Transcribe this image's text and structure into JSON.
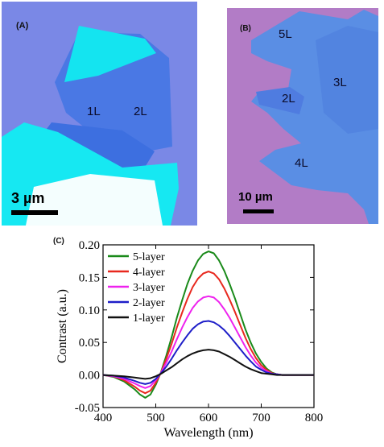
{
  "panel_a": {
    "label": "(A)",
    "flake_labels": [
      "1L",
      "2L"
    ],
    "scale_bar": "3 µm",
    "colors": {
      "substrate": "#7a88e6",
      "bulk": "#16e8f2",
      "thin": "#3f73e2",
      "bright": "#ffffff"
    }
  },
  "panel_b": {
    "label": "(B)",
    "flake_labels": [
      "5L",
      "3L",
      "2L",
      "4L"
    ],
    "scale_bar": "10 µm",
    "colors": {
      "substrate": "#b27cc6",
      "flake": "#5a8ee4"
    }
  },
  "panel_c": {
    "label": "(C)"
  },
  "chart_data": {
    "type": "line",
    "xlabel": "Wavelength (nm)",
    "ylabel": "Contrast (a.u.)",
    "xlim": [
      400,
      800
    ],
    "ylim": [
      -0.05,
      0.2
    ],
    "xticks": [
      400,
      500,
      600,
      700,
      800
    ],
    "yticks": [
      -0.05,
      0.0,
      0.05,
      0.1,
      0.15,
      0.2
    ],
    "ytick_labels": [
      "-0.05",
      "0.00",
      "0.05",
      "0.10",
      "0.15",
      "0.20"
    ],
    "legend_position": "top-left",
    "x": [
      400,
      420,
      440,
      460,
      470,
      480,
      490,
      500,
      510,
      520,
      530,
      540,
      550,
      560,
      570,
      580,
      590,
      600,
      610,
      620,
      630,
      640,
      650,
      660,
      670,
      680,
      690,
      700,
      710,
      720,
      730,
      740,
      750,
      760,
      780,
      800
    ],
    "series": [
      {
        "name": "5-layer",
        "color": "#1a8a1a",
        "values": [
          0.0,
          -0.003,
          -0.01,
          -0.022,
          -0.03,
          -0.035,
          -0.03,
          -0.015,
          0.005,
          0.03,
          0.058,
          0.088,
          0.115,
          0.14,
          0.16,
          0.176,
          0.186,
          0.19,
          0.187,
          0.176,
          0.16,
          0.14,
          0.118,
          0.094,
          0.07,
          0.05,
          0.033,
          0.02,
          0.01,
          0.004,
          0.001,
          0.0,
          0.0,
          0.0,
          0.0,
          0.0
        ]
      },
      {
        "name": "4-layer",
        "color": "#e8281e",
        "values": [
          0.0,
          -0.002,
          -0.008,
          -0.018,
          -0.024,
          -0.028,
          -0.024,
          -0.012,
          0.004,
          0.025,
          0.048,
          0.073,
          0.096,
          0.117,
          0.135,
          0.148,
          0.156,
          0.159,
          0.156,
          0.147,
          0.133,
          0.116,
          0.097,
          0.077,
          0.057,
          0.04,
          0.026,
          0.015,
          0.008,
          0.003,
          0.001,
          0.0,
          0.0,
          0.0,
          0.0,
          0.0
        ]
      },
      {
        "name": "3-layer",
        "color": "#ee22ee",
        "values": [
          0.0,
          -0.002,
          -0.006,
          -0.013,
          -0.017,
          -0.02,
          -0.017,
          -0.008,
          0.004,
          0.019,
          0.036,
          0.055,
          0.073,
          0.089,
          0.103,
          0.113,
          0.119,
          0.121,
          0.119,
          0.112,
          0.101,
          0.088,
          0.073,
          0.058,
          0.043,
          0.03,
          0.019,
          0.011,
          0.006,
          0.002,
          0.001,
          0.0,
          0.0,
          0.0,
          0.0,
          0.0
        ]
      },
      {
        "name": "2-layer",
        "color": "#1e1ec8",
        "values": [
          0.0,
          -0.001,
          -0.004,
          -0.009,
          -0.012,
          -0.014,
          -0.012,
          -0.006,
          0.003,
          0.013,
          0.025,
          0.038,
          0.05,
          0.061,
          0.071,
          0.078,
          0.082,
          0.083,
          0.081,
          0.076,
          0.069,
          0.06,
          0.05,
          0.04,
          0.03,
          0.021,
          0.013,
          0.008,
          0.004,
          0.002,
          0.001,
          0.0,
          0.0,
          0.0,
          0.0,
          0.0
        ]
      },
      {
        "name": "1-layer",
        "color": "#111111",
        "values": [
          0.0,
          -0.001,
          -0.002,
          -0.004,
          -0.005,
          -0.006,
          -0.005,
          -0.002,
          0.002,
          0.007,
          0.012,
          0.018,
          0.024,
          0.029,
          0.033,
          0.036,
          0.038,
          0.039,
          0.038,
          0.036,
          0.032,
          0.028,
          0.023,
          0.018,
          0.013,
          0.009,
          0.006,
          0.003,
          0.002,
          0.001,
          0.0,
          0.0,
          0.0,
          0.0,
          0.0,
          0.0
        ]
      }
    ]
  }
}
